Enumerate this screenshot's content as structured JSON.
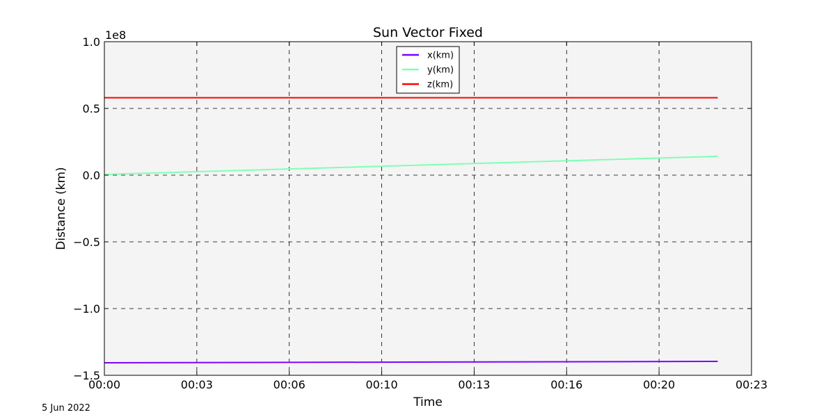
{
  "chart_data": {
    "type": "line",
    "title": "Sun Vector Fixed",
    "xlabel": "Time",
    "ylabel": "Distance (km)",
    "y_offset_label": "1e8",
    "footnote": "5 Jun 2022",
    "x_unit": "minutes",
    "xlim": [
      0,
      23
    ],
    "ylim": [
      -1.5,
      1.0
    ],
    "x_ticks": [
      {
        "value": 0,
        "label": "00:00"
      },
      {
        "value": 3.33,
        "label": "00:03"
      },
      {
        "value": 6.67,
        "label": "00:06"
      },
      {
        "value": 10,
        "label": "00:10"
      },
      {
        "value": 13.33,
        "label": "00:13"
      },
      {
        "value": 16.67,
        "label": "00:16"
      },
      {
        "value": 20,
        "label": "00:20"
      },
      {
        "value": 23.33,
        "label": "00:23"
      }
    ],
    "y_ticks": [
      {
        "value": 1.0,
        "label": "1.0"
      },
      {
        "value": 0.5,
        "label": "0.5"
      },
      {
        "value": 0.0,
        "label": "0.0"
      },
      {
        "value": -0.5,
        "label": "−0.5"
      },
      {
        "value": -1.0,
        "label": "−1.0"
      },
      {
        "value": -1.5,
        "label": "−1.5"
      }
    ],
    "grid": true,
    "legend_position": "top-center",
    "series": [
      {
        "name": "x(km)",
        "color": "#7f00ff",
        "x": [
          0,
          21.8
        ],
        "y": [
          -1.406,
          -1.396
        ]
      },
      {
        "name": "y(km)",
        "color": "#80ffb4",
        "x": [
          0,
          21.8
        ],
        "y": [
          0.005,
          0.141
        ]
      },
      {
        "name": "z(km)",
        "color": "#ff0000",
        "x": [
          0,
          21.8
        ],
        "y": [
          0.58,
          0.58
        ]
      }
    ],
    "plot_background": "#f4f4f4"
  }
}
